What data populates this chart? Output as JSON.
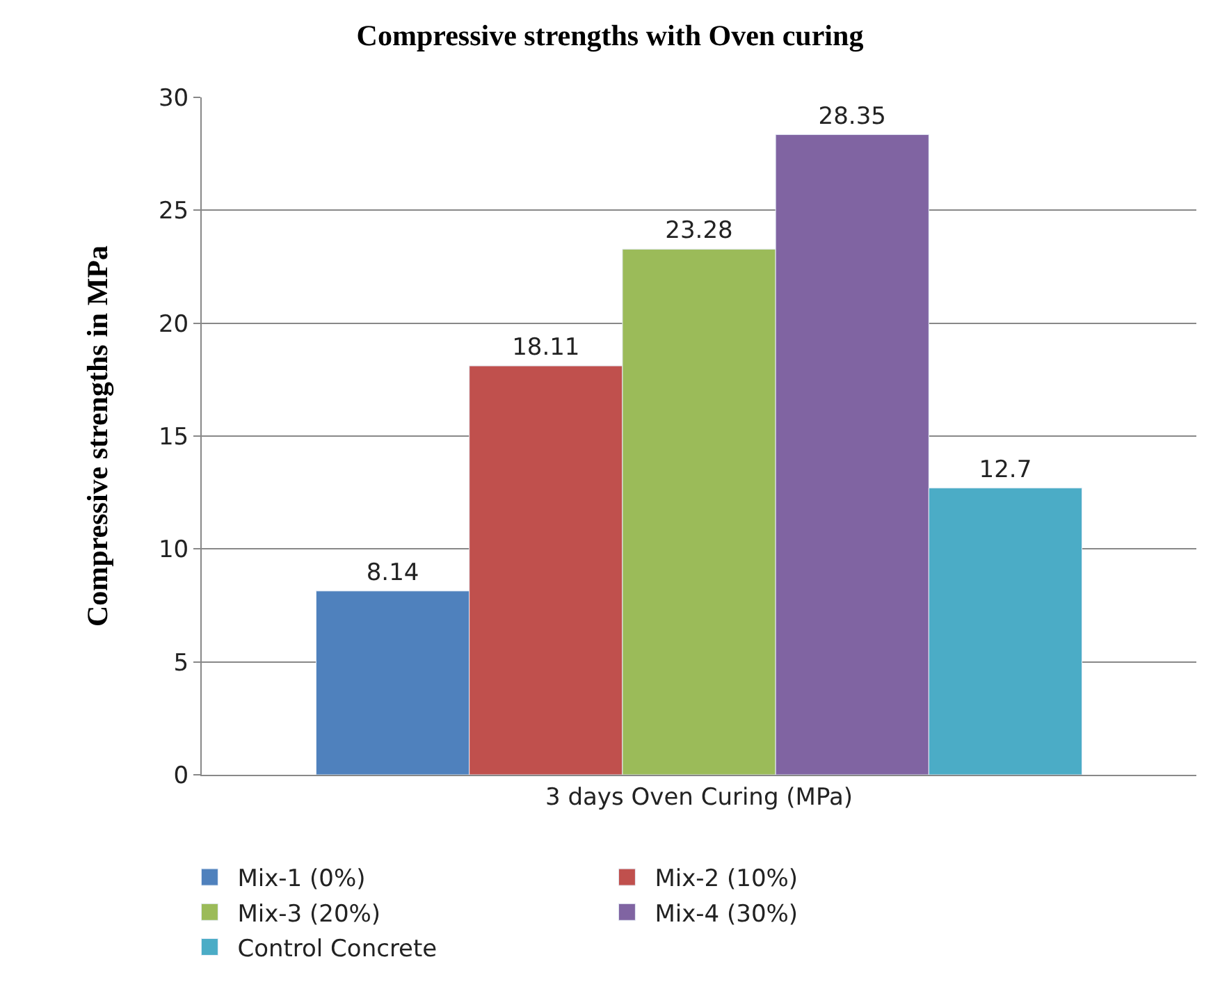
{
  "chart_data": {
    "type": "bar",
    "title": "Compressive strengths with Oven curing",
    "ylabel": "Compressive strengths in MPa",
    "categories": [
      "3 days Oven Curing (MPa)"
    ],
    "series": [
      {
        "name": "Mix-1 (0%)",
        "color": "#4f81bd",
        "values": [
          8.14
        ]
      },
      {
        "name": "Mix-2 (10%)",
        "color": "#c0504d",
        "values": [
          18.11
        ]
      },
      {
        "name": "Mix-3 (20%)",
        "color": "#9bbb59",
        "values": [
          23.28
        ]
      },
      {
        "name": "Mix-4 (30%)",
        "color": "#8064a2",
        "values": [
          28.35
        ]
      },
      {
        "name": "Control Concrete",
        "color": "#4bacc6",
        "values": [
          12.7
        ]
      }
    ],
    "ylim": [
      0,
      30
    ],
    "yticks": [
      0,
      5,
      10,
      15,
      20,
      25,
      30
    ],
    "grid": "y",
    "legend": "bottom",
    "data_labels": true
  }
}
